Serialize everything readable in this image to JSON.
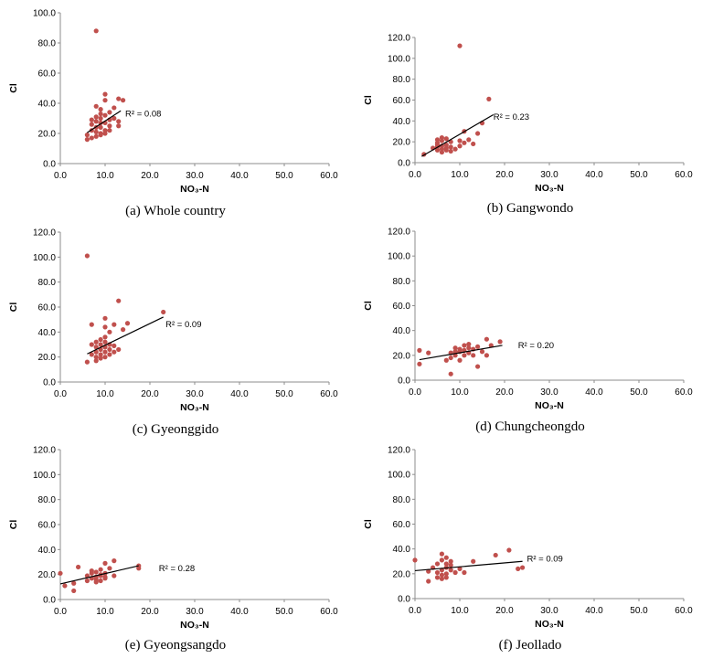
{
  "colors": {
    "point": "#c0504d",
    "trend": "#000000",
    "axis": "#8c8c8c"
  },
  "chart_data": [
    {
      "type": "scatter",
      "caption": "(a) Whole country",
      "xlabel": "NO₃-N",
      "ylabel": "Cl",
      "xlim": [
        0,
        60
      ],
      "ylim": [
        0,
        100
      ],
      "x_ticks": [
        "0.0",
        "10.0",
        "20.0",
        "30.0",
        "40.0",
        "50.0",
        "60.0"
      ],
      "y_ticks": [
        "0.0",
        "20.0",
        "40.0",
        "60.0",
        "80.0",
        "100.0"
      ],
      "r2_label": "R² = 0.08",
      "trendline": {
        "x": [
          6.0,
          13.5
        ],
        "y": [
          20.5,
          35.0
        ]
      },
      "points": [
        [
          8,
          88
        ],
        [
          6,
          16
        ],
        [
          6,
          19
        ],
        [
          7,
          17
        ],
        [
          7,
          22
        ],
        [
          7,
          26
        ],
        [
          8,
          18
        ],
        [
          8,
          21
        ],
        [
          8,
          24
        ],
        [
          8,
          28
        ],
        [
          8,
          38
        ],
        [
          9,
          20
        ],
        [
          9,
          24
        ],
        [
          9,
          27
        ],
        [
          9,
          30
        ],
        [
          9,
          33
        ],
        [
          9,
          36
        ],
        [
          10,
          20
        ],
        [
          10,
          22
        ],
        [
          10,
          27
        ],
        [
          10,
          42
        ],
        [
          10,
          46
        ],
        [
          11,
          22
        ],
        [
          11,
          29
        ],
        [
          11,
          34
        ],
        [
          12,
          30
        ],
        [
          12,
          37
        ],
        [
          13,
          25
        ],
        [
          13,
          28
        ],
        [
          13,
          43
        ],
        [
          14,
          42
        ],
        [
          7,
          29
        ],
        [
          8,
          31
        ],
        [
          9,
          19
        ],
        [
          10,
          32
        ],
        [
          11,
          25
        ]
      ]
    },
    {
      "type": "scatter",
      "caption": "(b) Gangwondo",
      "xlabel": "NO₃-N",
      "ylabel": "Cl",
      "xlim": [
        0,
        60
      ],
      "ylim": [
        0,
        120
      ],
      "x_ticks": [
        "0.0",
        "10.0",
        "20.0",
        "30.0",
        "40.0",
        "50.0",
        "60.0"
      ],
      "y_ticks": [
        "0.0",
        "20.0",
        "40.0",
        "60.0",
        "80.0",
        "100.0",
        "120.0"
      ],
      "r2_label": "R² = 0.23",
      "trendline": {
        "x": [
          1.5,
          17.5
        ],
        "y": [
          6.0,
          46.0
        ]
      },
      "points": [
        [
          10,
          112
        ],
        [
          16.5,
          61
        ],
        [
          2,
          8
        ],
        [
          4,
          14
        ],
        [
          5,
          12
        ],
        [
          5,
          15
        ],
        [
          5,
          19
        ],
        [
          5,
          22
        ],
        [
          6,
          10
        ],
        [
          6,
          13
        ],
        [
          6,
          16
        ],
        [
          6,
          24
        ],
        [
          7,
          12
        ],
        [
          7,
          14
        ],
        [
          7,
          17
        ],
        [
          8,
          11
        ],
        [
          8,
          15
        ],
        [
          8,
          20
        ],
        [
          10,
          16
        ],
        [
          10,
          21
        ],
        [
          11,
          19
        ],
        [
          11,
          30
        ],
        [
          12,
          22
        ],
        [
          13,
          18
        ],
        [
          14,
          28
        ],
        [
          15,
          38
        ],
        [
          5,
          17
        ],
        [
          6,
          21
        ],
        [
          7,
          23
        ],
        [
          9,
          13
        ]
      ]
    },
    {
      "type": "scatter",
      "caption": "(c) Gyeonggido",
      "xlabel": "NO₃-N",
      "ylabel": "Cl",
      "xlim": [
        0,
        60
      ],
      "ylim": [
        0,
        120
      ],
      "x_ticks": [
        "0.0",
        "10.0",
        "20.0",
        "30.0",
        "40.0",
        "50.0",
        "60.0"
      ],
      "y_ticks": [
        "0.0",
        "20.0",
        "40.0",
        "60.0",
        "80.0",
        "100.0",
        "120.0"
      ],
      "r2_label": "R² = 0.09",
      "trendline": {
        "x": [
          6.0,
          23.0
        ],
        "y": [
          22.5,
          52.0
        ]
      },
      "points": [
        [
          6,
          101
        ],
        [
          6,
          16
        ],
        [
          7,
          22
        ],
        [
          7,
          30
        ],
        [
          7,
          46
        ],
        [
          8,
          17
        ],
        [
          8,
          20
        ],
        [
          8,
          24
        ],
        [
          8,
          28
        ],
        [
          9,
          22
        ],
        [
          9,
          26
        ],
        [
          9,
          30
        ],
        [
          9,
          34
        ],
        [
          10,
          20
        ],
        [
          10,
          24
        ],
        [
          10,
          28
        ],
        [
          10,
          32
        ],
        [
          10,
          44
        ],
        [
          10,
          51
        ],
        [
          11,
          22
        ],
        [
          11,
          26
        ],
        [
          11,
          40
        ],
        [
          12,
          29
        ],
        [
          12,
          46
        ],
        [
          13,
          26
        ],
        [
          13,
          65
        ],
        [
          14,
          42
        ],
        [
          15,
          47
        ],
        [
          23,
          56
        ],
        [
          8,
          32
        ],
        [
          9,
          19
        ],
        [
          10,
          36
        ],
        [
          11,
          30
        ],
        [
          12,
          24
        ]
      ]
    },
    {
      "type": "scatter",
      "caption": "(d) Chungcheongdo",
      "xlabel": "NO₃-N",
      "ylabel": "Cl",
      "xlim": [
        0,
        60
      ],
      "ylim": [
        0,
        120
      ],
      "x_ticks": [
        "0.0",
        "10.0",
        "20.0",
        "30.0",
        "40.0",
        "50.0",
        "60.0"
      ],
      "y_ticks": [
        "0.0",
        "20.0",
        "40.0",
        "60.0",
        "80.0",
        "100.0",
        "120.0"
      ],
      "r2_label": "R² = 0.20",
      "trendline": {
        "x": [
          1.0,
          19.5
        ],
        "y": [
          16.5,
          28.0
        ]
      },
      "points": [
        [
          1,
          13
        ],
        [
          1,
          24
        ],
        [
          3,
          22
        ],
        [
          7,
          16
        ],
        [
          8,
          5
        ],
        [
          8,
          18
        ],
        [
          8,
          22
        ],
        [
          9,
          20
        ],
        [
          9,
          26
        ],
        [
          10,
          16
        ],
        [
          10,
          23
        ],
        [
          11,
          20
        ],
        [
          11,
          24
        ],
        [
          11,
          28
        ],
        [
          12,
          22
        ],
        [
          12,
          26
        ],
        [
          13,
          20
        ],
        [
          13,
          25
        ],
        [
          14,
          11
        ],
        [
          14,
          27
        ],
        [
          15,
          23
        ],
        [
          16,
          20
        ],
        [
          16,
          33
        ],
        [
          17,
          28
        ],
        [
          19,
          31
        ],
        [
          10,
          25
        ],
        [
          12,
          29
        ],
        [
          9,
          23
        ]
      ]
    },
    {
      "type": "scatter",
      "caption": "(e) Gyeongsangdo",
      "xlabel": "NO₃-N",
      "ylabel": "Cl",
      "xlim": [
        0,
        60
      ],
      "ylim": [
        0,
        120
      ],
      "x_ticks": [
        "0.0",
        "10.0",
        "20.0",
        "30.0",
        "40.0",
        "50.0",
        "60.0"
      ],
      "y_ticks": [
        "0.0",
        "20.0",
        "40.0",
        "60.0",
        "80.0",
        "100.0",
        "120.0"
      ],
      "r2_label": "R² = 0.28",
      "trendline": {
        "x": [
          0.0,
          17.5
        ],
        "y": [
          12.5,
          27.0
        ]
      },
      "points": [
        [
          0,
          21
        ],
        [
          1,
          11
        ],
        [
          3,
          7
        ],
        [
          3,
          13
        ],
        [
          4,
          26
        ],
        [
          6,
          15
        ],
        [
          6,
          19
        ],
        [
          7,
          17
        ],
        [
          7,
          21
        ],
        [
          8,
          14
        ],
        [
          8,
          18
        ],
        [
          8,
          22
        ],
        [
          9,
          15
        ],
        [
          9,
          19
        ],
        [
          9,
          24
        ],
        [
          10,
          17
        ],
        [
          10,
          21
        ],
        [
          10,
          29
        ],
        [
          11,
          25
        ],
        [
          12,
          19
        ],
        [
          12,
          31
        ],
        [
          17.5,
          25
        ],
        [
          17.5,
          27
        ],
        [
          7,
          23
        ],
        [
          8,
          16
        ],
        [
          9,
          20
        ],
        [
          10,
          18
        ]
      ]
    },
    {
      "type": "scatter",
      "caption": "(f) Jeollado",
      "xlabel": "NO₃-N",
      "ylabel": "Cl",
      "xlim": [
        0,
        60
      ],
      "ylim": [
        0,
        120
      ],
      "x_ticks": [
        "0.0",
        "10.0",
        "20.0",
        "30.0",
        "40.0",
        "50.0",
        "60.0"
      ],
      "y_ticks": [
        "0.0",
        "20.0",
        "40.0",
        "60.0",
        "80.0",
        "100.0",
        "120.0"
      ],
      "r2_label": "R² = 0.09",
      "trendline": {
        "x": [
          0.0,
          24.0
        ],
        "y": [
          22.5,
          30.0
        ]
      },
      "points": [
        [
          0,
          31
        ],
        [
          3,
          14
        ],
        [
          3,
          22
        ],
        [
          4,
          25
        ],
        [
          5,
          17
        ],
        [
          5,
          21
        ],
        [
          5,
          28
        ],
        [
          6,
          16
        ],
        [
          6,
          23
        ],
        [
          6,
          31
        ],
        [
          6,
          36
        ],
        [
          7,
          17
        ],
        [
          7,
          20
        ],
        [
          7,
          25
        ],
        [
          7,
          33
        ],
        [
          8,
          23
        ],
        [
          8,
          30
        ],
        [
          9,
          21
        ],
        [
          10,
          24
        ],
        [
          11,
          21
        ],
        [
          13,
          30
        ],
        [
          18,
          35
        ],
        [
          21,
          39
        ],
        [
          23,
          24
        ],
        [
          24,
          25
        ],
        [
          6,
          19
        ],
        [
          7,
          28
        ],
        [
          8,
          27
        ]
      ]
    }
  ]
}
